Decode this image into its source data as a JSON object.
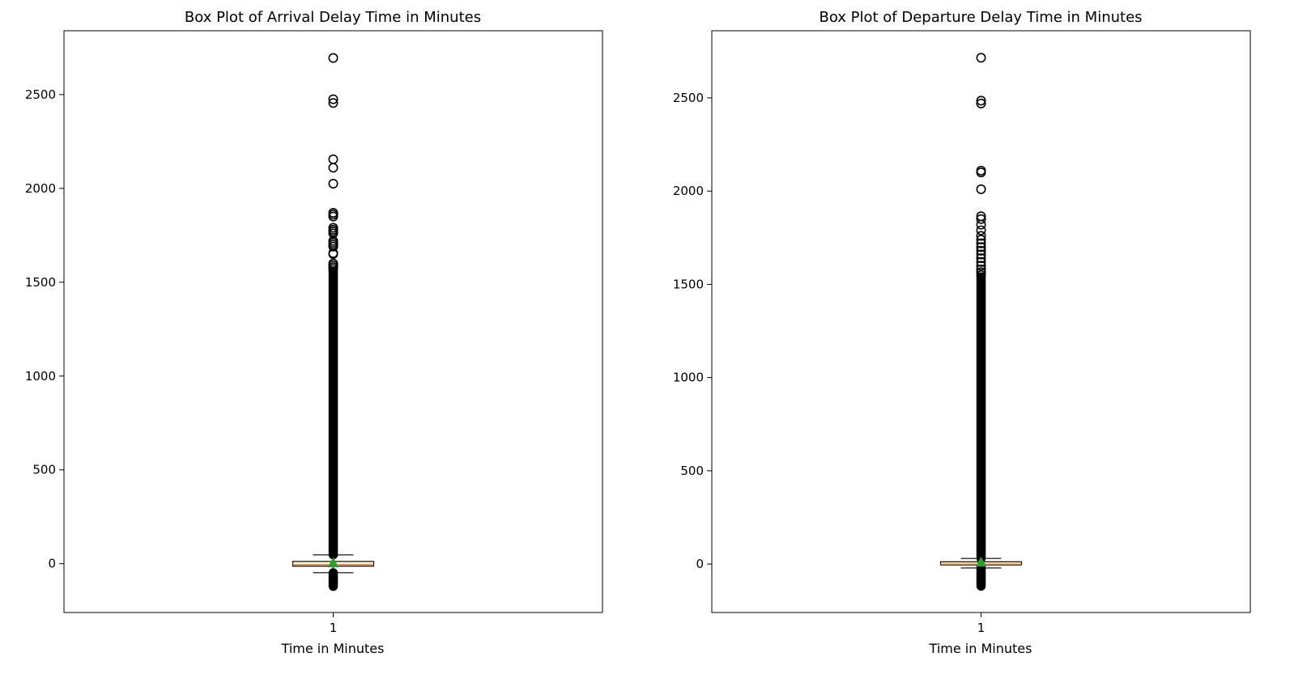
{
  "chart_data": [
    {
      "type": "box",
      "title": "Box Plot of Arrival Delay Time in Minutes",
      "xlabel": "Time in Minutes",
      "ylabel": "",
      "categories": [
        "1"
      ],
      "ylim": [
        -260,
        2840
      ],
      "yticks": [
        0,
        500,
        1000,
        1500,
        2000,
        2500
      ],
      "show_means": true,
      "colors": {
        "median": "#ff7f0e",
        "mean": "#2ca02c",
        "box": "#000000"
      },
      "box": {
        "q1": -13,
        "median": -5,
        "q3": 12,
        "whisker_low": -48,
        "whisker_high": 47,
        "mean": 4
      },
      "outlier_dense_ranges": [
        [
          48,
          1560
        ],
        [
          -120,
          -49
        ]
      ],
      "outliers": [
        1570,
        1580,
        1590,
        1600,
        1650,
        1655,
        1690,
        1700,
        1710,
        1720,
        1760,
        1770,
        1780,
        1790,
        1850,
        1860,
        1870,
        2025,
        2110,
        2155,
        2455,
        2475,
        2695
      ]
    },
    {
      "type": "box",
      "title": "Box Plot of Departure Delay Time in Minutes",
      "xlabel": "Time in Minutes",
      "ylabel": "",
      "categories": [
        "1"
      ],
      "ylim": [
        -260,
        2860
      ],
      "yticks": [
        0,
        500,
        1000,
        1500,
        2000,
        2500
      ],
      "show_means": true,
      "colors": {
        "median": "#ff7f0e",
        "mean": "#2ca02c",
        "box": "#000000"
      },
      "box": {
        "q1": -5,
        "median": -1,
        "q3": 12,
        "whisker_low": -21,
        "whisker_high": 30,
        "mean": 9
      },
      "outlier_dense_ranges": [
        [
          31,
          1540
        ],
        [
          -118,
          -22
        ]
      ],
      "outliers": [
        1550,
        1565,
        1580,
        1600,
        1620,
        1640,
        1660,
        1680,
        1700,
        1720,
        1740,
        1760,
        1790,
        1820,
        1850,
        1865,
        2010,
        2100,
        2110,
        2470,
        2485,
        2715
      ]
    }
  ]
}
